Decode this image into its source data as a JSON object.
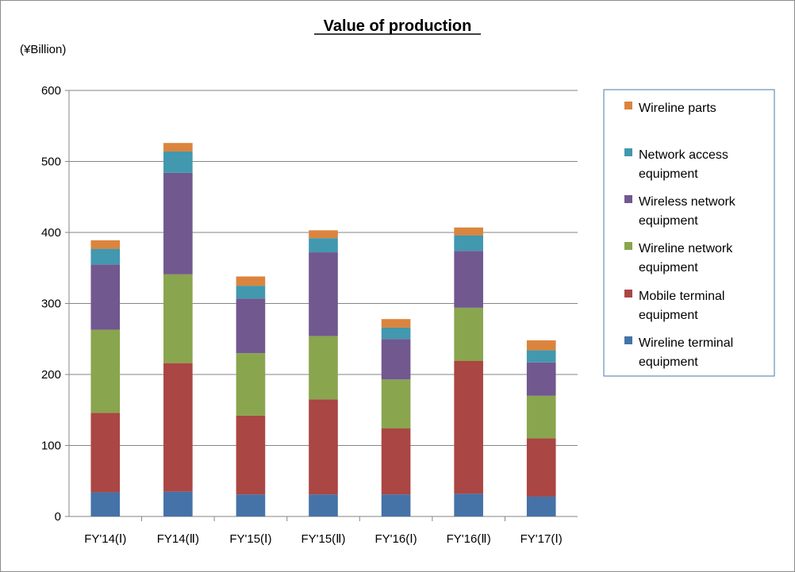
{
  "chart_data": {
    "type": "bar",
    "stacked": true,
    "title": "Value of production",
    "unit_label": "(¥Billion)",
    "xlabel": "",
    "ylabel": "",
    "ylim": [
      0,
      600
    ],
    "yticks": [
      0,
      100,
      200,
      300,
      400,
      500,
      600
    ],
    "grid": true,
    "legend_position": "right",
    "categories": [
      "FY'14(Ⅰ)",
      "FY14(Ⅱ)",
      "FY'15(Ⅰ)",
      "FY'15(Ⅱ)",
      "FY'16(Ⅰ)",
      "FY'16(Ⅱ)",
      "FY'17(Ⅰ)"
    ],
    "series": [
      {
        "name": "Wireline terminal equipment",
        "color": "#4572a7",
        "values": [
          34,
          35,
          31,
          31,
          31,
          32,
          28
        ]
      },
      {
        "name": "Mobile terminal equipment",
        "color": "#aa4643",
        "values": [
          112,
          181,
          111,
          134,
          93,
          187,
          82
        ]
      },
      {
        "name": "Wireline network equipment",
        "color": "#89a54e",
        "values": [
          117,
          125,
          88,
          89,
          69,
          75,
          60
        ]
      },
      {
        "name": "Wireless network equipment",
        "color": "#71588f",
        "values": [
          92,
          143,
          77,
          118,
          57,
          80,
          47
        ]
      },
      {
        "name": "Network access equipment",
        "color": "#4198af",
        "values": [
          22,
          30,
          18,
          20,
          16,
          22,
          17
        ]
      },
      {
        "name": "Wireline parts",
        "color": "#db843d",
        "values": [
          12,
          12,
          13,
          11,
          12,
          11,
          14
        ]
      }
    ],
    "legend_lines": [
      [
        "Wireline parts"
      ],
      [
        "Network access",
        "equipment"
      ],
      [
        "Wireless network",
        "equipment"
      ],
      [
        "Wireline network",
        "equipment"
      ],
      [
        "Mobile terminal",
        "equipment"
      ],
      [
        "Wireline terminal",
        "equipment"
      ]
    ]
  }
}
